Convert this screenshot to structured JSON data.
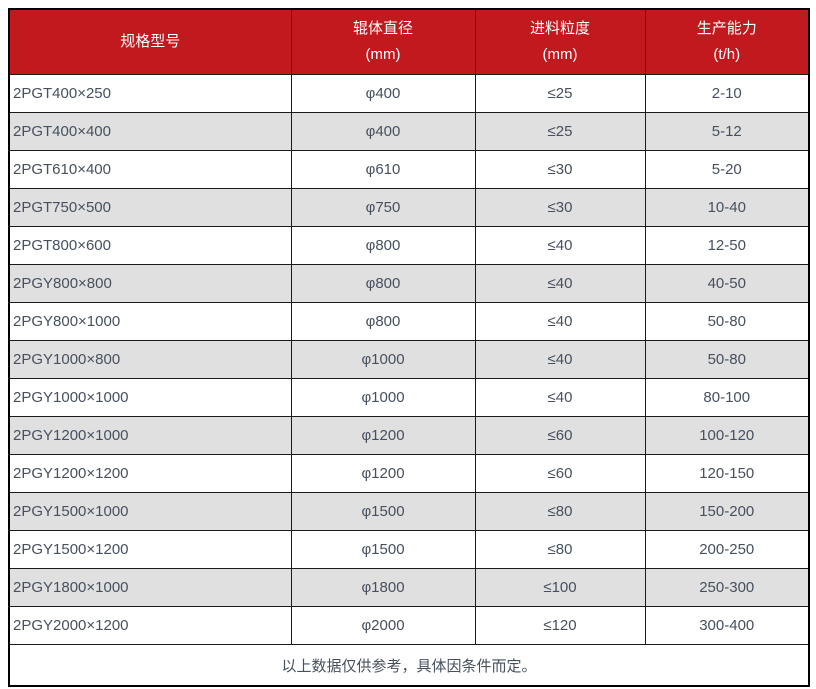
{
  "colors": {
    "header_bg": "#c1191e",
    "header_text": "#ffffff",
    "row_alt_bg": "#e0e0e0",
    "body_text": "#46505e",
    "border": "#1b1b1b"
  },
  "table": {
    "columns": [
      {
        "label": "规格型号",
        "unit": ""
      },
      {
        "label": "辊体直径",
        "unit": "(mm)"
      },
      {
        "label": "进料粒度",
        "unit": "(mm)"
      },
      {
        "label": "生产能力",
        "unit": "(t/h)"
      }
    ],
    "rows": [
      {
        "model": "2PGT400×250",
        "diameter": "φ400",
        "feed_size": "≤25",
        "capacity": "2-10"
      },
      {
        "model": "2PGT400×400",
        "diameter": "φ400",
        "feed_size": "≤25",
        "capacity": "5-12"
      },
      {
        "model": "2PGT610×400",
        "diameter": "φ610",
        "feed_size": "≤30",
        "capacity": "5-20"
      },
      {
        "model": "2PGT750×500",
        "diameter": "φ750",
        "feed_size": "≤30",
        "capacity": "10-40"
      },
      {
        "model": "2PGT800×600",
        "diameter": "φ800",
        "feed_size": "≤40",
        "capacity": "12-50"
      },
      {
        "model": "2PGY800×800",
        "diameter": "φ800",
        "feed_size": "≤40",
        "capacity": "40-50"
      },
      {
        "model": "2PGY800×1000",
        "diameter": "φ800",
        "feed_size": "≤40",
        "capacity": "50-80"
      },
      {
        "model": "2PGY1000×800",
        "diameter": "φ1000",
        "feed_size": "≤40",
        "capacity": "50-80"
      },
      {
        "model": "2PGY1000×1000",
        "diameter": "φ1000",
        "feed_size": "≤40",
        "capacity": "80-100"
      },
      {
        "model": "2PGY1200×1000",
        "diameter": "φ1200",
        "feed_size": "≤60",
        "capacity": "100-120"
      },
      {
        "model": "2PGY1200×1200",
        "diameter": "φ1200",
        "feed_size": "≤60",
        "capacity": "120-150"
      },
      {
        "model": "2PGY1500×1000",
        "diameter": "φ1500",
        "feed_size": "≤80",
        "capacity": "150-200"
      },
      {
        "model": "2PGY1500×1200",
        "diameter": "φ1500",
        "feed_size": "≤80",
        "capacity": "200-250"
      },
      {
        "model": "2PGY1800×1000",
        "diameter": "φ1800",
        "feed_size": "≤100",
        "capacity": "250-300"
      },
      {
        "model": "2PGY2000×1200",
        "diameter": "φ2000",
        "feed_size": "≤120",
        "capacity": "300-400"
      }
    ],
    "footer_note": "以上数据仅供参考，具体因条件而定。"
  }
}
